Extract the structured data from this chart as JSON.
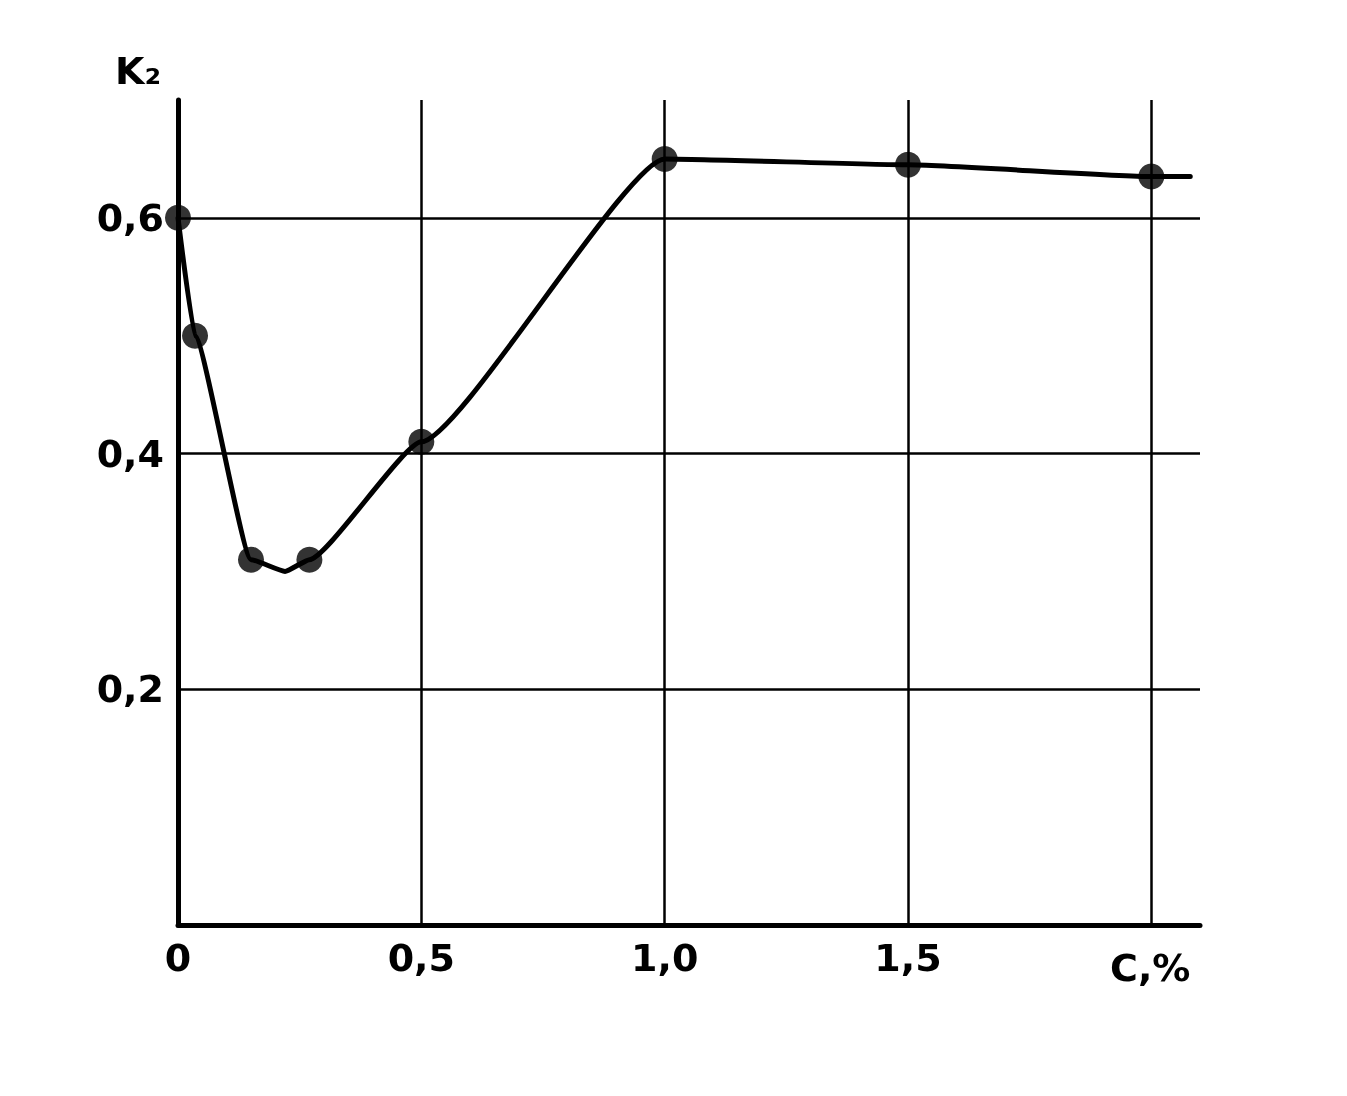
{
  "chart_data": {
    "type": "line",
    "xlabel": "C,%",
    "ylabel": "K₂",
    "xlim": [
      0,
      2.1
    ],
    "ylim": [
      0,
      0.7
    ],
    "xticks": [
      0,
      {
        "value": 0.5,
        "label": "0,5"
      },
      {
        "value": 1,
        "label": "1,0"
      },
      {
        "value": 1.5,
        "label": "1,5"
      },
      {
        "value": 2,
        "label": null
      }
    ],
    "yticks": [
      {
        "value": 0,
        "label": null
      },
      {
        "value": 0.2,
        "label": "0,2"
      },
      {
        "value": 0.4,
        "label": "0,4"
      },
      {
        "value": 0.6,
        "label": "0,6"
      }
    ],
    "grid": true,
    "series": [
      {
        "type": "line",
        "color": "#000000",
        "marker": "none",
        "x": [
          0,
          0.035,
          0.15,
          0.22,
          0.27,
          0.5,
          1.0,
          1.5,
          2.0,
          2.08
        ],
        "values": [
          0.6,
          0.5,
          0.31,
          0.3,
          0.31,
          0.41,
          0.65,
          0.645,
          0.635,
          0.635
        ]
      },
      {
        "type": "scatter",
        "color": "#000000",
        "marker": "circle",
        "x": [
          0,
          0.035,
          0.15,
          0.27,
          0.5,
          1.0,
          1.5,
          2.0
        ],
        "values": [
          0.6,
          0.5,
          0.31,
          0.31,
          0.41,
          0.65,
          0.645,
          0.635
        ]
      }
    ]
  }
}
